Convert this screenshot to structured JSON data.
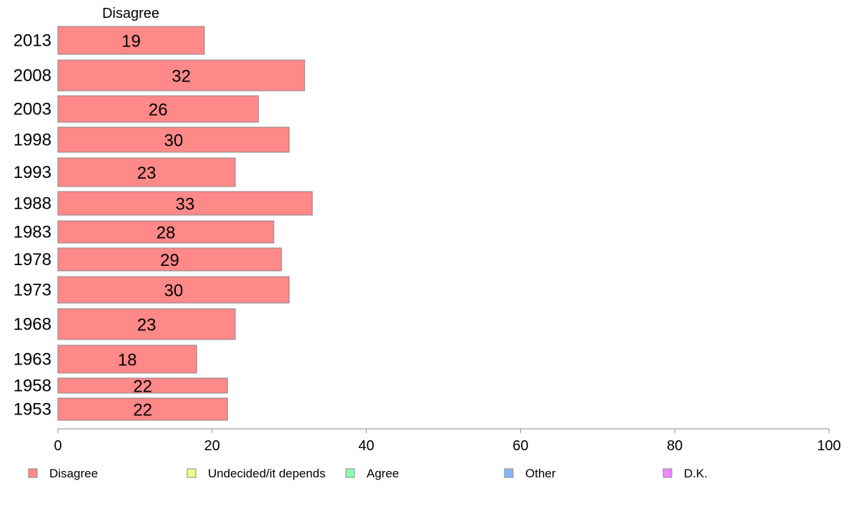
{
  "chart_data": {
    "type": "bar",
    "orientation": "horizontal",
    "stacked": true,
    "header": "Disagree",
    "categories": [
      "2013",
      "2008",
      "2003",
      "1998",
      "1993",
      "1988",
      "1983",
      "1978",
      "1973",
      "1968",
      "1963",
      "1958",
      "1953"
    ],
    "series": [
      {
        "name": "Disagree",
        "color": "#ff8888",
        "values": [
          19,
          32,
          26,
          30,
          23,
          33,
          28,
          29,
          30,
          23,
          18,
          22,
          22
        ],
        "labels": [
          "19",
          "32",
          "26",
          "30",
          "23",
          "33",
          "28",
          "29",
          "30",
          "23",
          "18",
          "22",
          "22"
        ]
      }
    ],
    "xlim": [
      0,
      100
    ],
    "xticks": [
      "0",
      "20",
      "40",
      "60",
      "80",
      "100"
    ],
    "legend": {
      "placement": "bottom",
      "entries": [
        {
          "label": "Disagree",
          "color": "#ff8888"
        },
        {
          "label": "Undecided/it depends",
          "color": "#f2ff88"
        },
        {
          "label": "Agree",
          "color": "#88ffb0"
        },
        {
          "label": "Other",
          "color": "#88b4ff"
        },
        {
          "label": "D.K.",
          "color": "#ee88ff"
        }
      ]
    },
    "grid": false
  }
}
